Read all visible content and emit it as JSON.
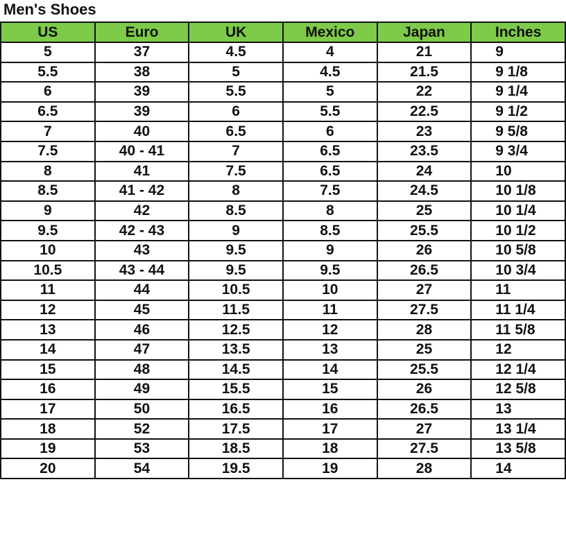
{
  "title": "Men's Shoes",
  "colors": {
    "header_bg": "#7dcb48",
    "border": "#111111"
  },
  "table": {
    "headers": [
      "US",
      "Euro",
      "UK",
      "Mexico",
      "Japan",
      "Inches"
    ],
    "rows": [
      [
        "5",
        "37",
        "4.5",
        "4",
        "21",
        "9"
      ],
      [
        "5.5",
        "38",
        "5",
        "4.5",
        "21.5",
        "9 1/8"
      ],
      [
        "6",
        "39",
        "5.5",
        "5",
        "22",
        "9 1/4"
      ],
      [
        "6.5",
        "39",
        "6",
        "5.5",
        "22.5",
        "9 1/2"
      ],
      [
        "7",
        "40",
        "6.5",
        "6",
        "23",
        "9 5/8"
      ],
      [
        "7.5",
        "40 - 41",
        "7",
        "6.5",
        "23.5",
        "9 3/4"
      ],
      [
        "8",
        "41",
        "7.5",
        "6.5",
        "24",
        "10"
      ],
      [
        "8.5",
        "41 - 42",
        "8",
        "7.5",
        "24.5",
        "10 1/8"
      ],
      [
        "9",
        "42",
        "8.5",
        "8",
        "25",
        "10 1/4"
      ],
      [
        "9.5",
        "42 - 43",
        "9",
        "8.5",
        "25.5",
        "10 1/2"
      ],
      [
        "10",
        "43",
        "9.5",
        "9",
        "26",
        "10 5/8"
      ],
      [
        "10.5",
        "43 - 44",
        "9.5",
        "9.5",
        "26.5",
        "10 3/4"
      ],
      [
        "11",
        "44",
        "10.5",
        "10",
        "27",
        "11"
      ],
      [
        "12",
        "45",
        "11.5",
        "11",
        "27.5",
        "11 1/4"
      ],
      [
        "13",
        "46",
        "12.5",
        "12",
        "28",
        "11 5/8"
      ],
      [
        "14",
        "47",
        "13.5",
        "13",
        "25",
        "12"
      ],
      [
        "15",
        "48",
        "14.5",
        "14",
        "25.5",
        "12 1/4"
      ],
      [
        "16",
        "49",
        "15.5",
        "15",
        "26",
        "12 5/8"
      ],
      [
        "17",
        "50",
        "16.5",
        "16",
        "26.5",
        "13"
      ],
      [
        "18",
        "52",
        "17.5",
        "17",
        "27",
        "13 1/4"
      ],
      [
        "19",
        "53",
        "18.5",
        "18",
        "27.5",
        "13 5/8"
      ],
      [
        "20",
        "54",
        "19.5",
        "19",
        "28",
        "14"
      ]
    ]
  }
}
